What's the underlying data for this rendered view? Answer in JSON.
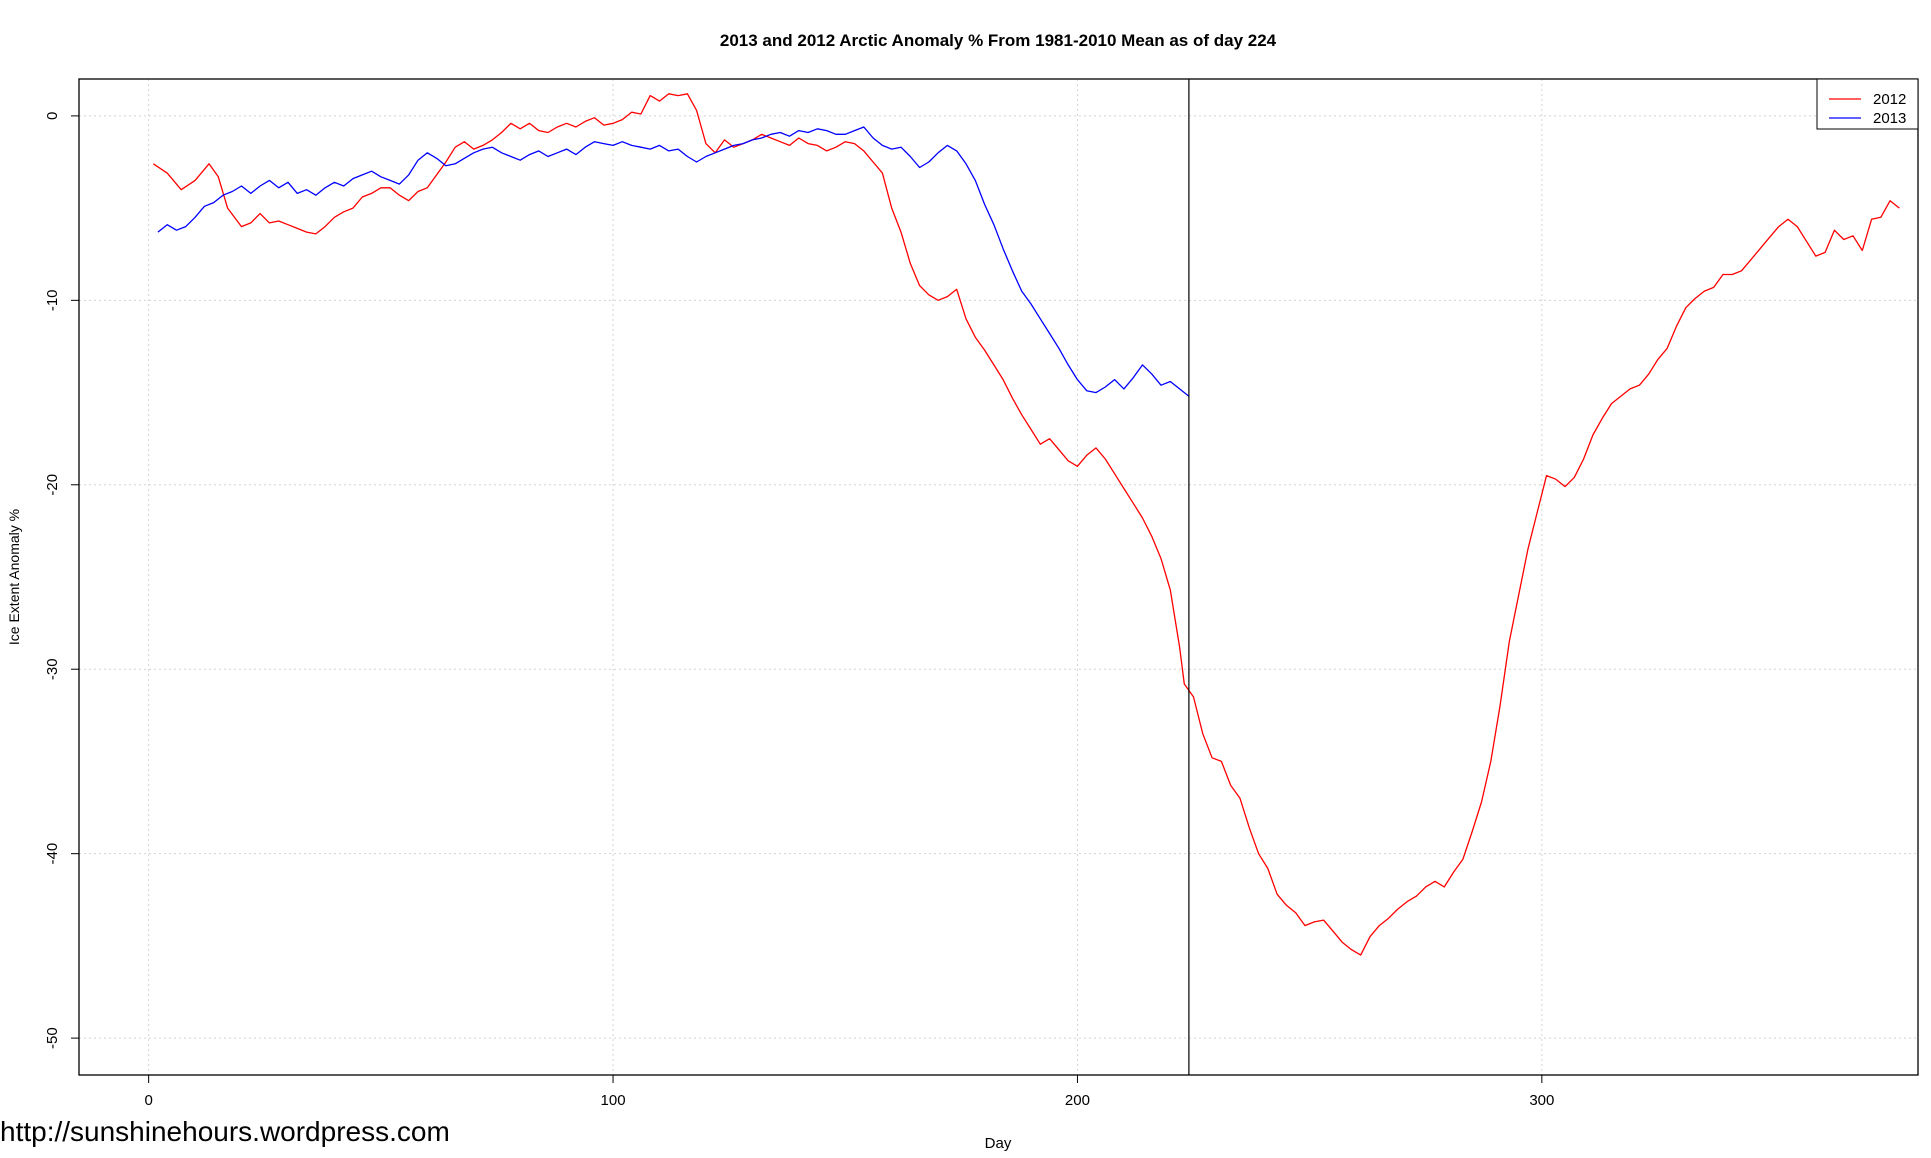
{
  "chart_data": {
    "type": "line",
    "title": "2013 and 2012 Arctic Anomaly % From 1981-2010 Mean as of day 224",
    "xlabel": "Day",
    "ylabel": "Ice Extent Anomaly %",
    "xlim": [
      -15,
      381
    ],
    "ylim": [
      -52,
      2
    ],
    "xticks": [
      0,
      100,
      200,
      300
    ],
    "yticks": [
      0,
      -10,
      -20,
      -30,
      -40,
      -50
    ],
    "grid": true,
    "legend_position": "top-right",
    "vline_x": 224,
    "series": [
      {
        "name": "2012",
        "color": "#ff0000",
        "points": [
          [
            1,
            -2.6
          ],
          [
            4,
            -3.1
          ],
          [
            7,
            -4.0
          ],
          [
            10,
            -3.5
          ],
          [
            13,
            -2.6
          ],
          [
            15,
            -3.3
          ],
          [
            17,
            -5.0
          ],
          [
            20,
            -6.0
          ],
          [
            22,
            -5.8
          ],
          [
            24,
            -5.3
          ],
          [
            26,
            -5.8
          ],
          [
            28,
            -5.7
          ],
          [
            30,
            -5.9
          ],
          [
            32,
            -6.1
          ],
          [
            34,
            -6.3
          ],
          [
            36,
            -6.4
          ],
          [
            38,
            -6.0
          ],
          [
            40,
            -5.5
          ],
          [
            42,
            -5.2
          ],
          [
            44,
            -5.0
          ],
          [
            46,
            -4.4
          ],
          [
            48,
            -4.2
          ],
          [
            50,
            -3.9
          ],
          [
            52,
            -3.9
          ],
          [
            54,
            -4.3
          ],
          [
            56,
            -4.6
          ],
          [
            58,
            -4.1
          ],
          [
            60,
            -3.9
          ],
          [
            62,
            -3.2
          ],
          [
            64,
            -2.5
          ],
          [
            66,
            -1.7
          ],
          [
            68,
            -1.4
          ],
          [
            70,
            -1.8
          ],
          [
            72,
            -1.6
          ],
          [
            74,
            -1.3
          ],
          [
            76,
            -0.9
          ],
          [
            78,
            -0.4
          ],
          [
            80,
            -0.7
          ],
          [
            82,
            -0.4
          ],
          [
            84,
            -0.8
          ],
          [
            86,
            -0.9
          ],
          [
            88,
            -0.6
          ],
          [
            90,
            -0.4
          ],
          [
            92,
            -0.6
          ],
          [
            94,
            -0.3
          ],
          [
            96,
            -0.1
          ],
          [
            98,
            -0.5
          ],
          [
            100,
            -0.4
          ],
          [
            102,
            -0.2
          ],
          [
            104,
            0.2
          ],
          [
            106,
            0.1
          ],
          [
            108,
            1.1
          ],
          [
            110,
            0.8
          ],
          [
            112,
            1.2
          ],
          [
            114,
            1.1
          ],
          [
            116,
            1.2
          ],
          [
            118,
            0.3
          ],
          [
            120,
            -1.5
          ],
          [
            122,
            -2.0
          ],
          [
            124,
            -1.3
          ],
          [
            126,
            -1.7
          ],
          [
            128,
            -1.5
          ],
          [
            130,
            -1.3
          ],
          [
            132,
            -1.0
          ],
          [
            134,
            -1.2
          ],
          [
            136,
            -1.4
          ],
          [
            138,
            -1.6
          ],
          [
            140,
            -1.2
          ],
          [
            142,
            -1.5
          ],
          [
            144,
            -1.6
          ],
          [
            146,
            -1.9
          ],
          [
            148,
            -1.7
          ],
          [
            150,
            -1.4
          ],
          [
            152,
            -1.5
          ],
          [
            154,
            -1.9
          ],
          [
            156,
            -2.5
          ],
          [
            158,
            -3.1
          ],
          [
            160,
            -5.0
          ],
          [
            162,
            -6.3
          ],
          [
            164,
            -8.0
          ],
          [
            166,
            -9.2
          ],
          [
            168,
            -9.7
          ],
          [
            170,
            -10.0
          ],
          [
            172,
            -9.8
          ],
          [
            174,
            -9.4
          ],
          [
            176,
            -11.0
          ],
          [
            178,
            -12.0
          ],
          [
            180,
            -12.7
          ],
          [
            182,
            -13.5
          ],
          [
            184,
            -14.3
          ],
          [
            186,
            -15.3
          ],
          [
            188,
            -16.2
          ],
          [
            190,
            -17.0
          ],
          [
            192,
            -17.8
          ],
          [
            194,
            -17.5
          ],
          [
            196,
            -18.1
          ],
          [
            198,
            -18.7
          ],
          [
            200,
            -19.0
          ],
          [
            202,
            -18.4
          ],
          [
            204,
            -18.0
          ],
          [
            206,
            -18.6
          ],
          [
            208,
            -19.4
          ],
          [
            210,
            -20.2
          ],
          [
            212,
            -21.0
          ],
          [
            214,
            -21.8
          ],
          [
            216,
            -22.8
          ],
          [
            218,
            -24.0
          ],
          [
            220,
            -25.7
          ],
          [
            222,
            -28.8
          ],
          [
            223,
            -30.8
          ],
          [
            225,
            -31.5
          ],
          [
            227,
            -33.5
          ],
          [
            229,
            -34.8
          ],
          [
            231,
            -35.0
          ],
          [
            233,
            -36.3
          ],
          [
            235,
            -37.0
          ],
          [
            237,
            -38.6
          ],
          [
            239,
            -40.0
          ],
          [
            241,
            -40.8
          ],
          [
            243,
            -42.2
          ],
          [
            245,
            -42.8
          ],
          [
            247,
            -43.2
          ],
          [
            249,
            -43.9
          ],
          [
            251,
            -43.7
          ],
          [
            253,
            -43.6
          ],
          [
            255,
            -44.2
          ],
          [
            257,
            -44.8
          ],
          [
            259,
            -45.2
          ],
          [
            261,
            -45.5
          ],
          [
            263,
            -44.5
          ],
          [
            265,
            -43.9
          ],
          [
            267,
            -43.5
          ],
          [
            269,
            -43.0
          ],
          [
            271,
            -42.6
          ],
          [
            273,
            -42.3
          ],
          [
            275,
            -41.8
          ],
          [
            277,
            -41.5
          ],
          [
            279,
            -41.8
          ],
          [
            281,
            -41.0
          ],
          [
            283,
            -40.3
          ],
          [
            285,
            -38.8
          ],
          [
            287,
            -37.2
          ],
          [
            289,
            -35.0
          ],
          [
            291,
            -32.0
          ],
          [
            293,
            -28.5
          ],
          [
            295,
            -26.0
          ],
          [
            297,
            -23.5
          ],
          [
            299,
            -21.5
          ],
          [
            301,
            -19.5
          ],
          [
            303,
            -19.7
          ],
          [
            305,
            -20.1
          ],
          [
            307,
            -19.6
          ],
          [
            309,
            -18.6
          ],
          [
            311,
            -17.3
          ],
          [
            313,
            -16.4
          ],
          [
            315,
            -15.6
          ],
          [
            317,
            -15.2
          ],
          [
            319,
            -14.8
          ],
          [
            321,
            -14.6
          ],
          [
            323,
            -14.0
          ],
          [
            325,
            -13.2
          ],
          [
            327,
            -12.6
          ],
          [
            329,
            -11.4
          ],
          [
            331,
            -10.4
          ],
          [
            333,
            -9.9
          ],
          [
            335,
            -9.5
          ],
          [
            337,
            -9.3
          ],
          [
            339,
            -8.6
          ],
          [
            341,
            -8.6
          ],
          [
            343,
            -8.4
          ],
          [
            345,
            -7.8
          ],
          [
            347,
            -7.2
          ],
          [
            349,
            -6.6
          ],
          [
            351,
            -6.0
          ],
          [
            353,
            -5.6
          ],
          [
            355,
            -6.0
          ],
          [
            357,
            -6.8
          ],
          [
            359,
            -7.6
          ],
          [
            361,
            -7.4
          ],
          [
            363,
            -6.2
          ],
          [
            365,
            -6.7
          ],
          [
            367,
            -6.5
          ],
          [
            369,
            -7.3
          ],
          [
            371,
            -5.6
          ],
          [
            373,
            -5.5
          ],
          [
            375,
            -4.6
          ],
          [
            377,
            -5.0
          ]
        ]
      },
      {
        "name": "2013",
        "color": "#0000ff",
        "points": [
          [
            2,
            -6.3
          ],
          [
            4,
            -5.9
          ],
          [
            6,
            -6.2
          ],
          [
            8,
            -6.0
          ],
          [
            10,
            -5.5
          ],
          [
            12,
            -4.9
          ],
          [
            14,
            -4.7
          ],
          [
            16,
            -4.3
          ],
          [
            18,
            -4.1
          ],
          [
            20,
            -3.8
          ],
          [
            22,
            -4.2
          ],
          [
            24,
            -3.8
          ],
          [
            26,
            -3.5
          ],
          [
            28,
            -3.9
          ],
          [
            30,
            -3.6
          ],
          [
            32,
            -4.2
          ],
          [
            34,
            -4.0
          ],
          [
            36,
            -4.3
          ],
          [
            38,
            -3.9
          ],
          [
            40,
            -3.6
          ],
          [
            42,
            -3.8
          ],
          [
            44,
            -3.4
          ],
          [
            46,
            -3.2
          ],
          [
            48,
            -3.0
          ],
          [
            50,
            -3.3
          ],
          [
            52,
            -3.5
          ],
          [
            54,
            -3.7
          ],
          [
            56,
            -3.2
          ],
          [
            58,
            -2.4
          ],
          [
            60,
            -2.0
          ],
          [
            62,
            -2.3
          ],
          [
            64,
            -2.7
          ],
          [
            66,
            -2.6
          ],
          [
            68,
            -2.3
          ],
          [
            70,
            -2.0
          ],
          [
            72,
            -1.8
          ],
          [
            74,
            -1.7
          ],
          [
            76,
            -2.0
          ],
          [
            78,
            -2.2
          ],
          [
            80,
            -2.4
          ],
          [
            82,
            -2.1
          ],
          [
            84,
            -1.9
          ],
          [
            86,
            -2.2
          ],
          [
            88,
            -2.0
          ],
          [
            90,
            -1.8
          ],
          [
            92,
            -2.1
          ],
          [
            94,
            -1.7
          ],
          [
            96,
            -1.4
          ],
          [
            98,
            -1.5
          ],
          [
            100,
            -1.6
          ],
          [
            102,
            -1.4
          ],
          [
            104,
            -1.6
          ],
          [
            106,
            -1.7
          ],
          [
            108,
            -1.8
          ],
          [
            110,
            -1.6
          ],
          [
            112,
            -1.9
          ],
          [
            114,
            -1.8
          ],
          [
            116,
            -2.2
          ],
          [
            118,
            -2.5
          ],
          [
            120,
            -2.2
          ],
          [
            122,
            -2.0
          ],
          [
            124,
            -1.8
          ],
          [
            126,
            -1.6
          ],
          [
            128,
            -1.5
          ],
          [
            130,
            -1.3
          ],
          [
            132,
            -1.2
          ],
          [
            134,
            -1.0
          ],
          [
            136,
            -0.9
          ],
          [
            138,
            -1.1
          ],
          [
            140,
            -0.8
          ],
          [
            142,
            -0.9
          ],
          [
            144,
            -0.7
          ],
          [
            146,
            -0.8
          ],
          [
            148,
            -1.0
          ],
          [
            150,
            -1.0
          ],
          [
            152,
            -0.8
          ],
          [
            154,
            -0.6
          ],
          [
            156,
            -1.2
          ],
          [
            158,
            -1.6
          ],
          [
            160,
            -1.8
          ],
          [
            162,
            -1.7
          ],
          [
            164,
            -2.2
          ],
          [
            166,
            -2.8
          ],
          [
            168,
            -2.5
          ],
          [
            170,
            -2.0
          ],
          [
            172,
            -1.6
          ],
          [
            174,
            -1.9
          ],
          [
            176,
            -2.6
          ],
          [
            178,
            -3.5
          ],
          [
            180,
            -4.8
          ],
          [
            182,
            -5.9
          ],
          [
            184,
            -7.2
          ],
          [
            186,
            -8.4
          ],
          [
            188,
            -9.5
          ],
          [
            190,
            -10.2
          ],
          [
            192,
            -11.0
          ],
          [
            194,
            -11.8
          ],
          [
            196,
            -12.6
          ],
          [
            198,
            -13.5
          ],
          [
            200,
            -14.3
          ],
          [
            202,
            -14.9
          ],
          [
            204,
            -15.0
          ],
          [
            206,
            -14.7
          ],
          [
            208,
            -14.3
          ],
          [
            210,
            -14.8
          ],
          [
            212,
            -14.2
          ],
          [
            214,
            -13.5
          ],
          [
            216,
            -14.0
          ],
          [
            218,
            -14.6
          ],
          [
            220,
            -14.4
          ],
          [
            222,
            -14.8
          ],
          [
            224,
            -15.2
          ]
        ]
      }
    ]
  },
  "watermark": "http://sunshinehours.wordpress.com"
}
